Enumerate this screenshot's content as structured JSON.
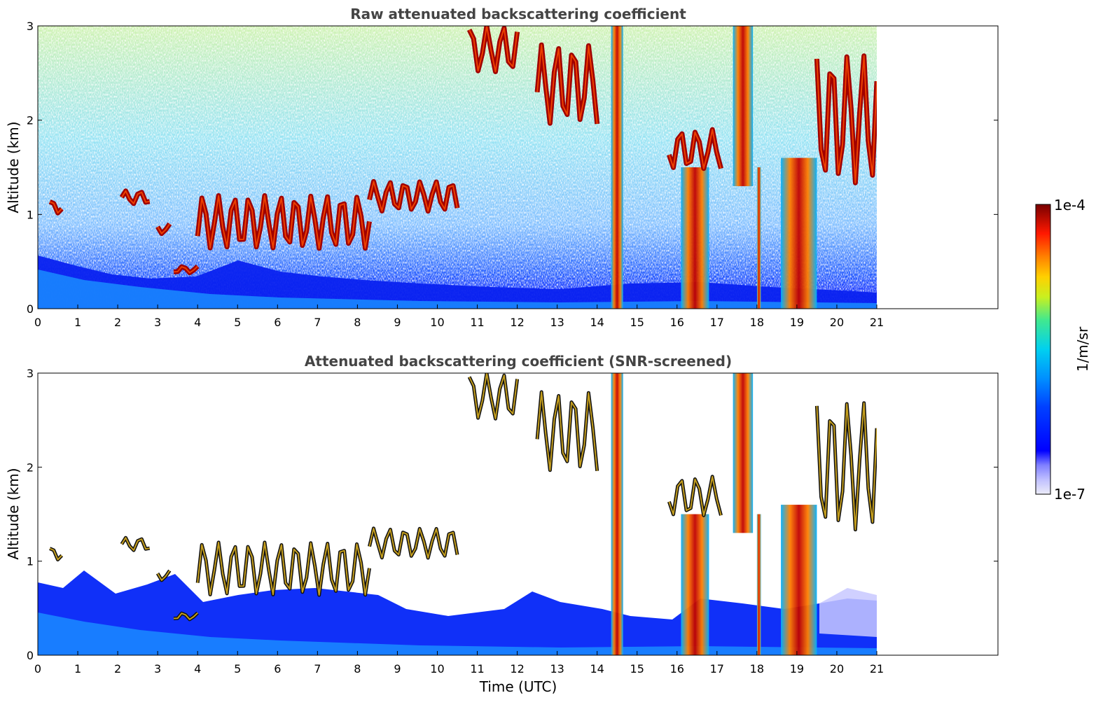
{
  "chart_data": [
    {
      "type": "heatmap",
      "title": "Raw attenuated backscattering coefficient",
      "xlabel": "",
      "ylabel": "Altitude (km)",
      "xlim": [
        0,
        24
      ],
      "ylim": [
        0,
        3
      ],
      "x_ticks": [
        "0",
        "1",
        "2",
        "3",
        "4",
        "5",
        "6",
        "7",
        "8",
        "9",
        "10",
        "11",
        "12",
        "13",
        "14",
        "15",
        "16",
        "17",
        "18",
        "19",
        "20",
        "21"
      ],
      "y_ticks": [
        "0",
        "1",
        "2",
        "3"
      ],
      "data_coverage_utc": [
        0,
        21
      ],
      "surface_layer_top_km": 0.4,
      "aerosol_layer_km": [
        0,
        0.6
      ],
      "noise_region_km": [
        0.6,
        3
      ],
      "cloud_features": [
        {
          "type": "cloud",
          "t_start": 0.3,
          "t_end": 0.6,
          "alt_base": 0.95,
          "alt_top": 1.15
        },
        {
          "type": "cloud",
          "t_start": 2.1,
          "t_end": 2.8,
          "alt_base": 1.05,
          "alt_top": 1.25
        },
        {
          "type": "cloud",
          "t_start": 3.0,
          "t_end": 3.3,
          "alt_base": 0.75,
          "alt_top": 0.9
        },
        {
          "type": "cloud",
          "t_start": 3.4,
          "t_end": 4.0,
          "alt_base": 0.35,
          "alt_top": 0.45
        },
        {
          "type": "cloud",
          "t_start": 4.0,
          "t_end": 8.3,
          "alt_base": 0.4,
          "alt_top": 1.2
        },
        {
          "type": "cloud",
          "t_start": 8.3,
          "t_end": 10.5,
          "alt_base": 0.9,
          "alt_top": 1.35
        },
        {
          "type": "cloud",
          "t_start": 10.8,
          "t_end": 12.0,
          "alt_base": 2.3,
          "alt_top": 3.0
        },
        {
          "type": "cloud",
          "t_start": 12.5,
          "t_end": 14.0,
          "alt_base": 1.6,
          "alt_top": 2.8
        },
        {
          "type": "precipitation",
          "t_start": 14.35,
          "t_end": 14.65,
          "alt_base": 0,
          "alt_top": 3.0
        },
        {
          "type": "precipitation",
          "t_start": 16.1,
          "t_end": 16.8,
          "alt_base": 0,
          "alt_top": 1.5
        },
        {
          "type": "cloud",
          "t_start": 15.8,
          "t_end": 17.1,
          "alt_base": 1.3,
          "alt_top": 1.9
        },
        {
          "type": "precipitation",
          "t_start": 17.4,
          "t_end": 17.9,
          "alt_base": 1.3,
          "alt_top": 3.0
        },
        {
          "type": "precipitation",
          "t_start": 18.0,
          "t_end": 18.1,
          "alt_base": 0,
          "alt_top": 1.5
        },
        {
          "type": "precipitation",
          "t_start": 18.6,
          "t_end": 19.5,
          "alt_base": 0,
          "alt_top": 1.6
        },
        {
          "type": "cloud",
          "t_start": 19.5,
          "t_end": 21.0,
          "alt_base": 0.75,
          "alt_top": 2.7
        }
      ]
    },
    {
      "type": "heatmap",
      "title": "Attenuated backscattering coefficient (SNR-screened)",
      "xlabel": "Time (UTC)",
      "ylabel": "Altitude (km)",
      "xlim": [
        0,
        24
      ],
      "ylim": [
        0,
        3
      ],
      "x_ticks": [
        "0",
        "1",
        "2",
        "3",
        "4",
        "5",
        "6",
        "7",
        "8",
        "9",
        "10",
        "11",
        "12",
        "13",
        "14",
        "15",
        "16",
        "17",
        "18",
        "19",
        "20",
        "21"
      ],
      "y_ticks": [
        "0",
        "1",
        "2",
        "3"
      ],
      "data_coverage_utc": [
        0,
        21
      ],
      "screened_layer_top_km": [
        0.75,
        0.5,
        0.9,
        0.4,
        0.4,
        0.35,
        0.55
      ],
      "screened_layer_top_times": [
        0,
        2,
        4,
        8,
        12,
        15,
        21
      ]
    }
  ],
  "colorbar": {
    "label": "1/m/sr",
    "max_label": "1e-4",
    "min_label": "1e-7",
    "colors": [
      "#e8e8f8",
      "#c8c8ff",
      "#0000ff",
      "#0060ff",
      "#00b8ff",
      "#20e0c0",
      "#80f060",
      "#f0f020",
      "#ff9000",
      "#ff2000",
      "#a00000",
      "#7a0000"
    ]
  }
}
